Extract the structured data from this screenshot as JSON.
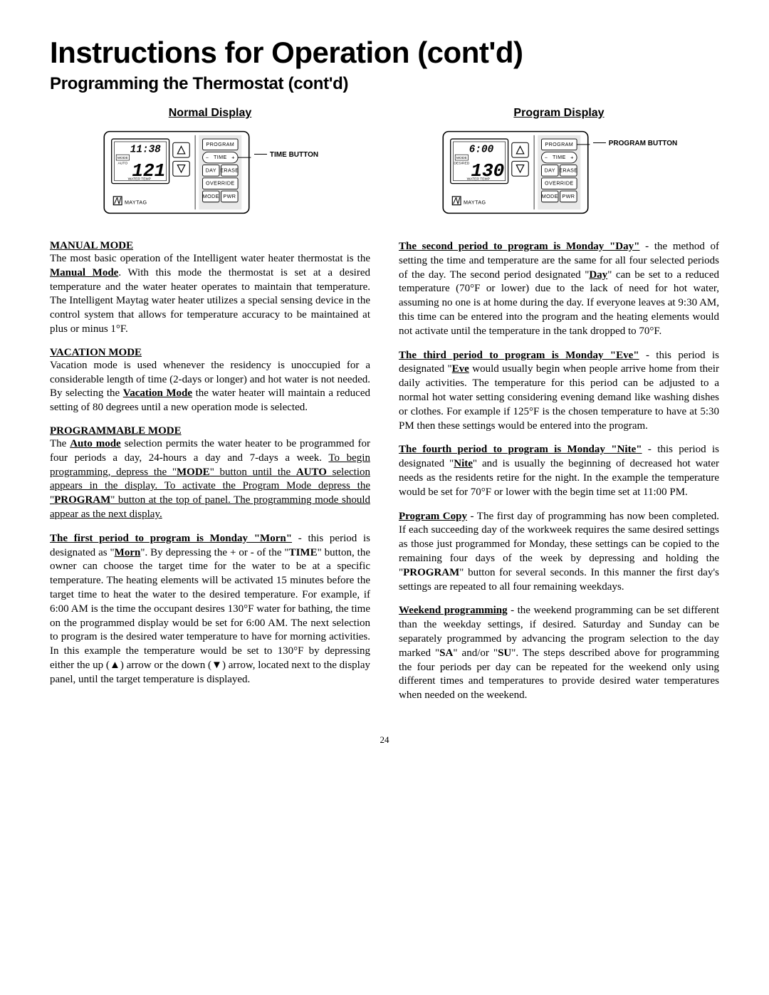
{
  "main_title": "Instructions for Operation (cont'd)",
  "subtitle": "Programming the Thermostat (cont'd)",
  "page_number": "24",
  "left": {
    "display_title": "Normal Display",
    "callout": "TIME BUTTON",
    "thermostat": {
      "time": "11:38",
      "temp": "121",
      "mode_label": "MODE",
      "auto_label": "AUTO",
      "water_temp_label": "WATER TEMP",
      "brand": "MAYTAG",
      "buttons": [
        "PROGRAM",
        "TIME",
        "DAY  ERASE",
        "OVERRIDE",
        "MODE  PWR"
      ],
      "highlight_button_index": 1
    },
    "sections": [
      {
        "head": "MANUAL MODE",
        "html": "The most basic operation of the Intelligent water heater thermostat is the <span class='ub'>Manual Mode</span>. With this mode the thermostat is set at a desired temperature and the water heater operates to maintain that temperature. The Intelligent Maytag water heater utilizes a special sensing device in the control system that allows for temperature accuracy to be maintained at plus or minus 1°F."
      },
      {
        "head": "VACATION MODE",
        "html": "Vacation mode is used whenever the residency is unoccupied for a considerable length of time (2-days or longer) and hot water is not needed. By selecting the <span class='ub'>Vacation Mode</span> the water heater will maintain a reduced setting of 80 degrees until a new operation mode is selected."
      },
      {
        "head": "PROGRAMMABLE MODE",
        "html": "The <span class='ub'>Auto mode</span> selection permits the water heater to be programmed for four periods a day, 24-hours a day and 7-days a week. <span class='u'>To begin programming, depress the \"<span class='b'>MODE</span>\" button until the <span class='b'>AUTO</span> selection appears in the display. To activate the Program Mode depress the \"<span class='b'>PROGRAM</span>\" button at the top of panel. The programming mode should appear as the next display.</span>"
      },
      {
        "html": "<span class='ub'>The first period to program is Monday \"Morn\"</span> - this period is designated as \"<span class='ub'>Morn</span>\". By depressing the + or - of the \"<span class='b'>TIME</span>\" button, the owner can choose the target time for the water to be at a specific temperature. The heating elements will be activated 15 minutes before the target time to heat the water to the desired temperature. For example, if 6:00 AM is the time the occupant desires 130°F water for bathing, the time on the programmed display would be set for 6:00 AM. The next selection to program is the desired water temperature to have for morning activities. In this example the temperature would be set to 130°F by depressing either the up (▲) arrow or the down (▼) arrow, located next to the display panel, until the target temperature is displayed."
      }
    ]
  },
  "right": {
    "display_title": "Program Display",
    "callout": "PROGRAM BUTTON",
    "thermostat": {
      "time": "6:00",
      "temp": "130",
      "mode_label": "MODE",
      "auto_label": "DESIRED",
      "water_temp_label": "WATER TEMP",
      "brand": "MAYTAG",
      "buttons": [
        "PROGRAM",
        "TIME",
        "DAY  ERASE",
        "OVERRIDE",
        "MODE  PWR"
      ],
      "highlight_button_index": 0
    },
    "paragraphs": [
      {
        "html": "<span class='ub'>The second period to program is Monday \"Day\"</span> - the method of setting the time and temperature are the same for all four selected periods of the day. The second period designated \"<span class='ub'>Day</span>\" can be set to a reduced temperature (70°F or lower) due to the lack of need for hot water, assuming no one is at home during the day. If everyone leaves at 9:30 AM, this time can be entered into the program and the heating elements would not activate until the temperature in the tank dropped to 70°F."
      },
      {
        "html": "<span class='ub'>The third period to program is Monday \"Eve\"</span> - this period is designated \"<span class='ub'>Eve</span> would usually begin when people arrive home from their daily activities. The temperature for this period can be adjusted to a normal hot water setting considering evening demand like washing dishes or clothes. For example if 125°F is the chosen temperature to have at 5:30 PM then these settings would be entered into the program."
      },
      {
        "html": "<span class='ub'>The fourth period to program is Monday \"Nite\"</span> - this period is designated \"<span class='ub'>Nite</span>\" and is usually the beginning of decreased hot water needs as the residents retire for the night. In the example the temperature would be set for 70°F or lower with the begin time set at 11:00 PM."
      },
      {
        "html": "<span class='ub'>Program Copy</span> - The first day of programming has now been completed. If each succeeding day of the workweek requires the same desired settings as those just programmed for Monday, these settings can be copied to the remaining four days of the week by depressing and holding the \"<span class='b'>PROGRAM</span>\" button for several seconds. In this manner the first day's settings are repeated to all four remaining weekdays."
      },
      {
        "html": "<span class='ub'>Weekend programming</span> - the weekend programming can be set different than the weekday settings, if desired. Saturday and Sunday can be separately programmed by advancing the program selection to the day marked \"<span class='b'>SA</span>\" and/or \"<span class='b'>SU</span>\". The steps described above for programming the four periods per day can be repeated for the weekend only using different times and temperatures to provide desired water temperatures when needed on the weekend."
      }
    ]
  }
}
